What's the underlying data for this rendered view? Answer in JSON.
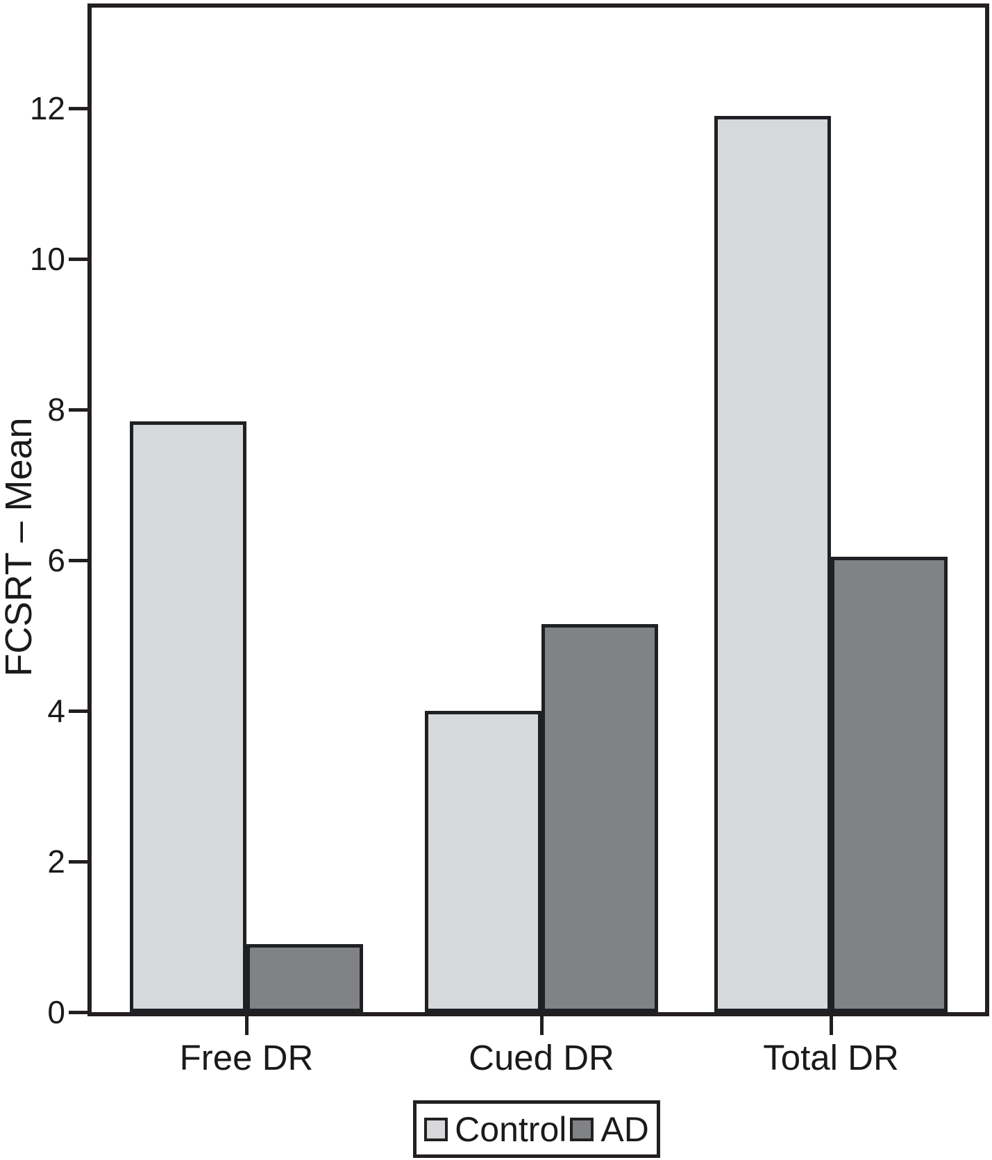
{
  "chart_data": {
    "type": "bar",
    "title": "",
    "xlabel": "",
    "ylabel": "FCSRT – Mean",
    "categories": [
      "Free DR",
      "Cued DR",
      "Total DR"
    ],
    "series": [
      {
        "name": "Control",
        "values": [
          7.85,
          4.0,
          11.9
        ],
        "color": "#d7d8da"
      },
      {
        "name": "AD",
        "values": [
          0.9,
          5.15,
          6.05
        ],
        "color": "#808285"
      }
    ],
    "yticks": [
      0,
      2,
      4,
      6,
      8,
      10,
      12
    ],
    "ylim": [
      0,
      13.34
    ],
    "grid": false,
    "legend_position": "bottom",
    "bar_border_color": "#1f2023",
    "axis_color": "#231f20"
  }
}
